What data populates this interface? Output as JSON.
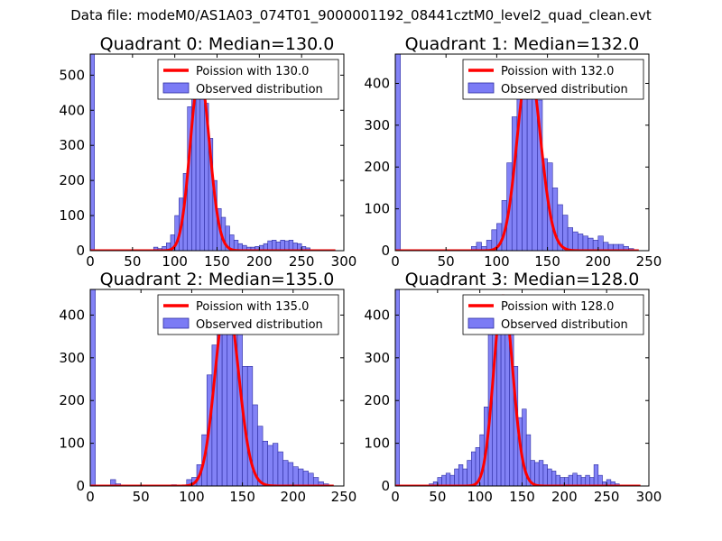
{
  "figure": {
    "suptitle": "Data file: modeM0/AS1A03_074T01_9000001192_08441cztM0_level2_quad_clean.evt",
    "colors": {
      "bars": "#7b7bf5",
      "bar_edge": "#2c2ca0",
      "poisson": "#ff0000",
      "frame": "#000000"
    }
  },
  "chart_data": [
    {
      "type": "bar",
      "title": "Quadrant 0: Median=130.0",
      "xlim": [
        0,
        300
      ],
      "ylim": [
        0,
        560
      ],
      "xticks": [
        0,
        50,
        100,
        150,
        200,
        250,
        300
      ],
      "yticks": [
        0,
        100,
        200,
        300,
        400,
        500
      ],
      "legend": {
        "poisson": "Poission with 130.0",
        "observed": "Observed distribution",
        "placement": "top-right"
      },
      "bin_width": 5,
      "bin_starts": [
        0,
        65,
        75,
        80,
        85,
        90,
        95,
        100,
        105,
        110,
        115,
        120,
        125,
        130,
        135,
        140,
        145,
        150,
        155,
        160,
        165,
        170,
        175,
        180,
        185,
        190,
        195,
        200,
        205,
        210,
        215,
        220,
        225,
        230,
        235,
        240,
        245,
        250,
        255
      ],
      "values": [
        560,
        3,
        10,
        6,
        12,
        22,
        45,
        100,
        150,
        220,
        410,
        440,
        540,
        480,
        420,
        320,
        200,
        120,
        95,
        70,
        45,
        30,
        20,
        15,
        10,
        10,
        12,
        15,
        20,
        28,
        30,
        25,
        30,
        28,
        30,
        22,
        20,
        12,
        8
      ],
      "poisson_mean": 130.0,
      "poisson_scale": 500
    },
    {
      "type": "bar",
      "title": "Quadrant 1: Median=132.0",
      "xlim": [
        0,
        250
      ],
      "ylim": [
        0,
        470
      ],
      "xticks": [
        0,
        50,
        100,
        150,
        200,
        250
      ],
      "yticks": [
        0,
        100,
        200,
        300,
        400
      ],
      "legend": {
        "poisson": "Poission with 132.0",
        "observed": "Observed distribution",
        "placement": "top-right"
      },
      "bin_width": 5,
      "bin_starts": [
        0,
        75,
        80,
        85,
        90,
        95,
        100,
        105,
        110,
        115,
        120,
        125,
        130,
        135,
        140,
        145,
        150,
        155,
        160,
        165,
        170,
        175,
        180,
        185,
        190,
        195,
        200,
        205,
        210,
        215,
        220,
        225,
        230
      ],
      "values": [
        470,
        10,
        20,
        10,
        25,
        50,
        65,
        120,
        210,
        320,
        420,
        440,
        440,
        420,
        360,
        220,
        210,
        150,
        110,
        85,
        55,
        45,
        40,
        35,
        30,
        25,
        35,
        20,
        15,
        15,
        15,
        10,
        5
      ],
      "poisson_mean": 132.0,
      "poisson_scale": 445
    },
    {
      "type": "bar",
      "title": "Quadrant 2: Median=135.0",
      "xlim": [
        0,
        250
      ],
      "ylim": [
        0,
        460
      ],
      "xticks": [
        0,
        50,
        100,
        150,
        200,
        250
      ],
      "yticks": [
        0,
        100,
        200,
        300,
        400
      ],
      "legend": {
        "poisson": "Poission with 135.0",
        "observed": "Observed distribution",
        "placement": "top-right"
      },
      "bin_width": 5,
      "bin_starts": [
        0,
        20,
        25,
        80,
        95,
        100,
        105,
        110,
        115,
        120,
        125,
        130,
        135,
        140,
        145,
        150,
        155,
        160,
        165,
        170,
        175,
        180,
        185,
        190,
        195,
        200,
        205,
        210,
        215,
        220,
        225,
        230
      ],
      "values": [
        460,
        15,
        5,
        3,
        15,
        20,
        50,
        120,
        260,
        330,
        390,
        420,
        440,
        440,
        420,
        280,
        280,
        190,
        140,
        105,
        95,
        100,
        80,
        60,
        55,
        45,
        40,
        35,
        30,
        20,
        10,
        5
      ],
      "poisson_mean": 135.0,
      "poisson_scale": 435
    },
    {
      "type": "bar",
      "title": "Quadrant 3: Median=128.0",
      "xlim": [
        0,
        300
      ],
      "ylim": [
        0,
        460
      ],
      "xticks": [
        0,
        50,
        100,
        150,
        200,
        250,
        300
      ],
      "yticks": [
        0,
        100,
        200,
        300,
        400
      ],
      "legend": {
        "poisson": "Poission with 128.0",
        "observed": "Observed distribution",
        "placement": "top-right"
      },
      "bin_width": 5,
      "bin_starts": [
        0,
        40,
        45,
        50,
        55,
        60,
        65,
        70,
        75,
        80,
        85,
        90,
        95,
        100,
        105,
        110,
        115,
        120,
        125,
        130,
        135,
        140,
        145,
        150,
        155,
        160,
        165,
        170,
        175,
        180,
        185,
        190,
        195,
        200,
        205,
        210,
        215,
        220,
        225,
        230,
        235,
        240,
        245,
        250,
        255,
        260
      ],
      "values": [
        460,
        5,
        10,
        20,
        25,
        30,
        25,
        40,
        50,
        40,
        60,
        80,
        90,
        120,
        185,
        380,
        420,
        440,
        440,
        400,
        380,
        280,
        160,
        180,
        120,
        60,
        55,
        60,
        50,
        40,
        35,
        25,
        20,
        20,
        25,
        30,
        25,
        20,
        25,
        20,
        50,
        25,
        10,
        15,
        10,
        5
      ],
      "poisson_mean": 128.0,
      "poisson_scale": 445
    }
  ]
}
